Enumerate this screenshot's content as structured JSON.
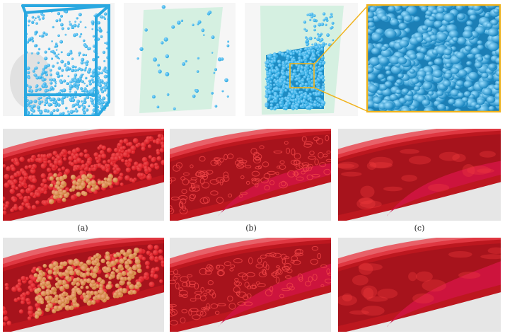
{
  "captions": {
    "a": "(a)",
    "b": "(b)",
    "c": "(c)"
  },
  "colors": {
    "particle_blue": "#2aa8e0",
    "plane_green": "#cfeedd",
    "vessel_red": "#d81c24",
    "particle_yellow": "#e6dc7a",
    "fluid_magenta": "#c8104a",
    "zoom_frame": "#f0b21a",
    "background_gray": "#e6e6e6"
  }
}
